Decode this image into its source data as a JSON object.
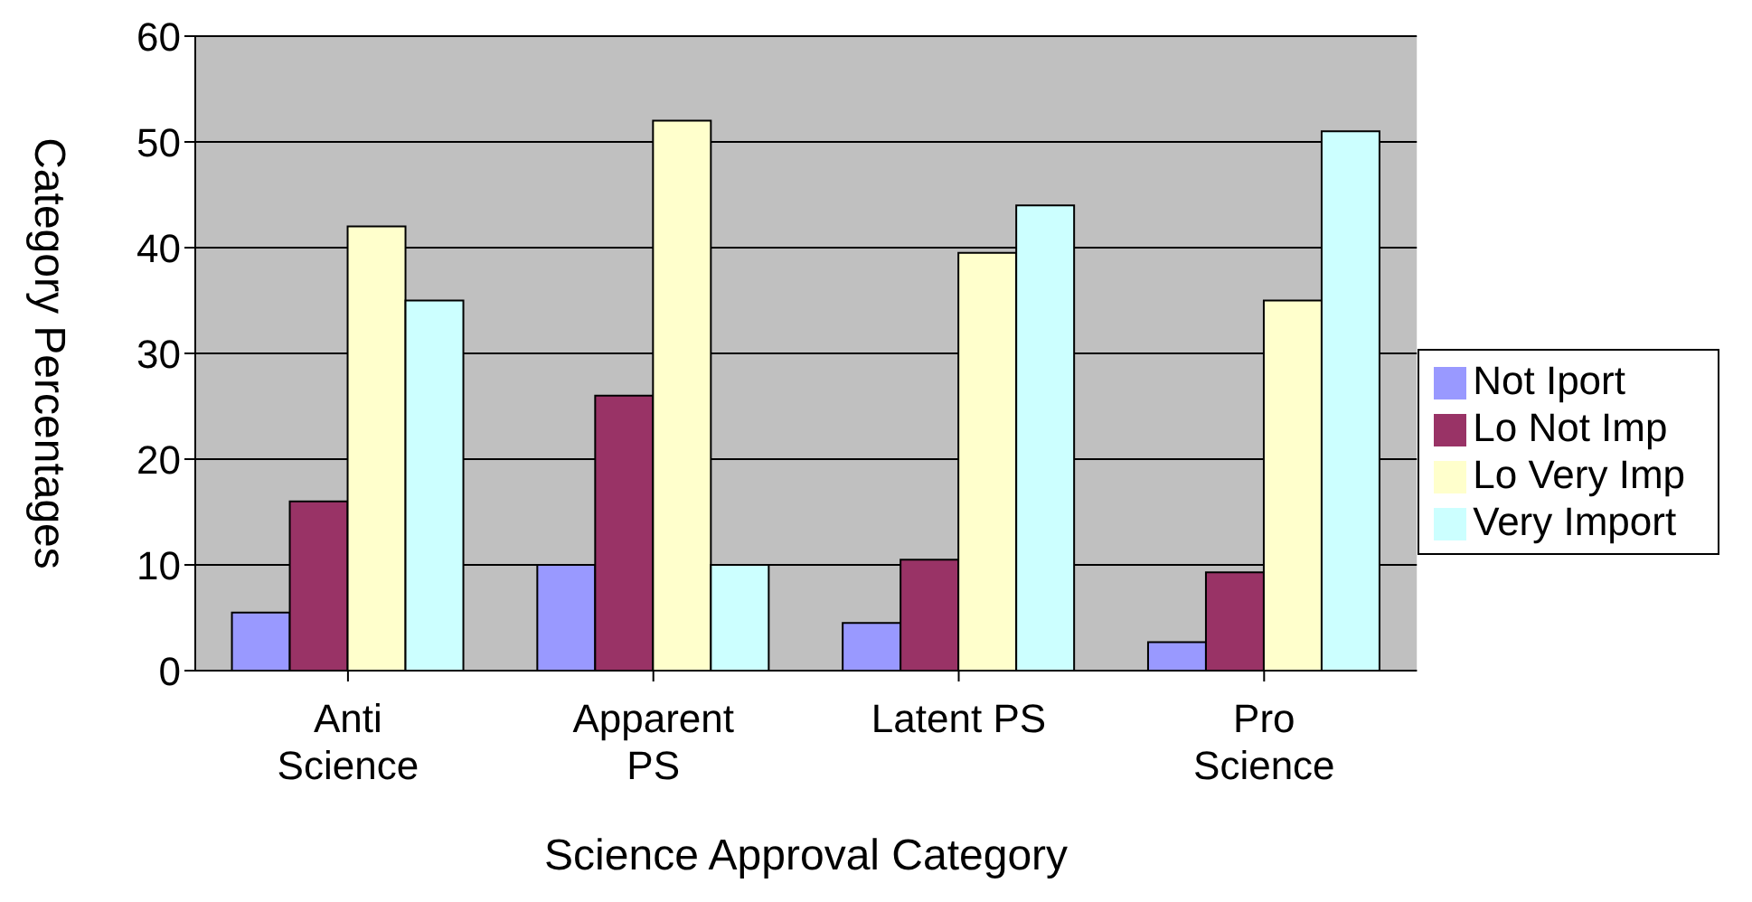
{
  "chart_data": {
    "type": "bar",
    "xlabel": "Science Approval Category",
    "ylabel": "Category Percentages",
    "categories": [
      "Anti Science",
      "Apparent PS",
      "Latent PS",
      "Pro Science"
    ],
    "series": [
      {
        "name": "Not Iport",
        "color": "#9999ff",
        "values": [
          5.5,
          10,
          4.5,
          2.7
        ]
      },
      {
        "name": "Lo Not Imp",
        "color": "#993366",
        "values": [
          16,
          26,
          10.5,
          9.3
        ]
      },
      {
        "name": "Lo Very Imp",
        "color": "#ffffcc",
        "values": [
          42,
          52,
          39.5,
          35
        ]
      },
      {
        "name": "Very Import",
        "color": "#ccffff",
        "values": [
          35,
          10,
          44,
          51
        ]
      }
    ],
    "ylim": [
      0,
      60
    ],
    "yticks": [
      0,
      10,
      20,
      30,
      40,
      50,
      60
    ],
    "grid": "y",
    "legend": "right"
  }
}
